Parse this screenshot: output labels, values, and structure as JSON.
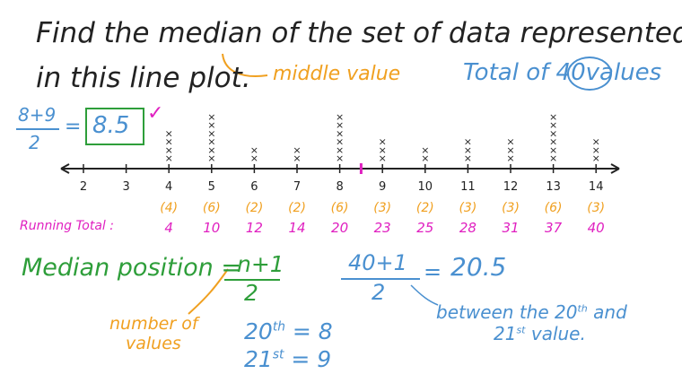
{
  "question": {
    "line1": "Find the median of the set of data represented",
    "line2": "in this line plot."
  },
  "notes": {
    "middle_value": "middle value",
    "total_prefix": "Total of",
    "total_count": "40",
    "total_suffix": "values"
  },
  "average": {
    "numerator": "8+9",
    "denominator": "2",
    "equals": "=",
    "answer": "8.5",
    "check": "✓"
  },
  "line_plot": {
    "tick_labels": [
      "2",
      "3",
      "4",
      "5",
      "6",
      "7",
      "8",
      "9",
      "10",
      "11",
      "12",
      "13",
      "14"
    ],
    "frequencies": [
      0,
      0,
      4,
      6,
      2,
      2,
      6,
      3,
      2,
      3,
      3,
      6,
      3
    ],
    "marker_value": 8.5,
    "frequency_labels": [
      "(4)",
      "(6)",
      "(2)",
      "(2)",
      "(6)",
      "(3)",
      "(2)",
      "(3)",
      "(3)",
      "(6)",
      "(3)"
    ],
    "running_totals": [
      "4",
      "10",
      "12",
      "14",
      "20",
      "23",
      "25",
      "28",
      "31",
      "37",
      "40"
    ],
    "running_label": "Running Total :"
  },
  "median_position": {
    "label": "Median position =",
    "numerator": "n+1",
    "denominator": "2",
    "n_note_line1": "number of",
    "n_note_line2": "values"
  },
  "calculation": {
    "numerator": "40+1",
    "denominator": "2",
    "equals": "=",
    "result": "20.5",
    "note_line1_a": "between the 20",
    "note_line1_sup": "th",
    "note_line1_b": " and",
    "note_line2_a": "21",
    "note_line2_sup": "st",
    "note_line2_b": " value."
  },
  "positions": {
    "p20_base": "20",
    "p20_sup": "th",
    "p20_value": " = 8",
    "p21_base": "21",
    "p21_sup": "st",
    "p21_value": " = 9"
  },
  "colors": {
    "text": "#222222",
    "orange": "#f0a020",
    "blue": "#4a90d0",
    "green": "#2e9e3a",
    "magenta": "#e020c0"
  }
}
